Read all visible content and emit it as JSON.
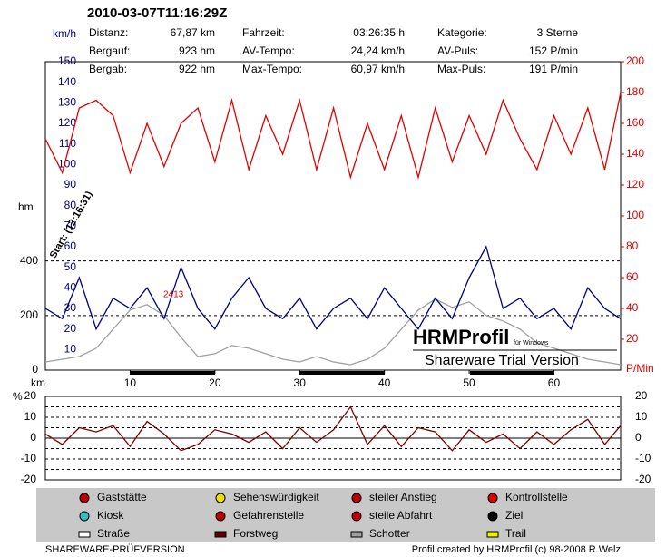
{
  "header": {
    "title": "2010-03-07T11:16:29Z",
    "stats": [
      [
        "Distanz:",
        "67,87 km",
        "Fahrzeit:",
        "03:26:35 h",
        "Kategorie:",
        "3 Sterne"
      ],
      [
        "Bergauf:",
        "923 hm",
        "AV-Tempo:",
        "24,24 km/h",
        "AV-Puls:",
        "152 P/min"
      ],
      [
        "Bergab:",
        "922 hm",
        "Max-Tempo:",
        "60,97 km/h",
        "Max-Puls:",
        "191 P/min"
      ]
    ]
  },
  "chart_data": [
    {
      "type": "line",
      "x_label": "km",
      "y_label": "hm",
      "x": [
        0,
        2,
        4,
        6,
        8,
        10,
        12,
        14,
        16,
        18,
        20,
        22,
        24,
        26,
        28,
        30,
        32,
        34,
        36,
        38,
        40,
        42,
        44,
        46,
        48,
        50,
        52,
        54,
        56,
        58,
        60,
        62,
        64,
        66,
        67.87
      ],
      "xlim": [
        0,
        67.87
      ],
      "xticks": [
        10,
        20,
        30,
        40,
        50,
        60
      ],
      "ylim": [
        0,
        1130
      ],
      "yticks": [
        0,
        200,
        400
      ],
      "grid": true,
      "y2lim": [
        0,
        200
      ],
      "y2ticks": [
        20,
        40,
        60,
        80,
        100,
        120,
        140,
        160,
        180,
        200
      ],
      "y2_label": "P/Min",
      "speed_axis": {
        "label": "km/h",
        "lim": [
          0,
          150
        ],
        "ticks": [
          10,
          20,
          30,
          40,
          50,
          60,
          70,
          80,
          90,
          100,
          110,
          120,
          130,
          140,
          150
        ],
        "color": "#000080"
      },
      "series": [
        {
          "color": "#a0a0a0",
          "axis": "y",
          "values": [
            30,
            40,
            50,
            80,
            150,
            220,
            240,
            200,
            120,
            50,
            60,
            90,
            80,
            60,
            40,
            30,
            50,
            30,
            20,
            40,
            80,
            150,
            220,
            260,
            230,
            250,
            200,
            180,
            150,
            100,
            80,
            60,
            40,
            30,
            20
          ]
        },
        {
          "color": "#000080",
          "axis": "speed",
          "values": [
            30,
            25,
            45,
            20,
            35,
            30,
            40,
            25,
            50,
            30,
            20,
            35,
            45,
            30,
            25,
            35,
            20,
            30,
            35,
            25,
            40,
            30,
            20,
            35,
            25,
            45,
            60,
            30,
            35,
            25,
            30,
            20,
            40,
            30,
            25
          ]
        },
        {
          "color": "#e00000",
          "axis": "y2",
          "values": [
            150,
            128,
            170,
            175,
            165,
            128,
            160,
            132,
            160,
            170,
            135,
            175,
            130,
            165,
            140,
            175,
            130,
            170,
            125,
            160,
            130,
            165,
            125,
            170,
            135,
            165,
            140,
            175,
            150,
            130,
            165,
            140,
            170,
            130,
            180
          ]
        }
      ],
      "annotations": [
        "Start: (12:16:31)",
        "2413"
      ],
      "watermark": [
        "HRMProfil",
        "für Windows",
        "Shareware Trial  Version"
      ]
    },
    {
      "type": "line",
      "y_label": "%",
      "x": [
        0,
        2,
        4,
        6,
        8,
        10,
        12,
        14,
        16,
        18,
        20,
        22,
        24,
        26,
        28,
        30,
        32,
        34,
        36,
        38,
        40,
        42,
        44,
        46,
        48,
        50,
        52,
        54,
        56,
        58,
        60,
        62,
        64,
        66,
        67.87
      ],
      "xlim": [
        0,
        67.87
      ],
      "ylim": [
        -20,
        20
      ],
      "yticks": [
        -20,
        -10,
        0,
        10,
        20
      ],
      "grid_lines": [
        15,
        10,
        5,
        -5,
        -10,
        -15
      ],
      "series": [
        {
          "color": "#800000",
          "values": [
            2,
            -3,
            5,
            3,
            6,
            -4,
            8,
            2,
            -6,
            -3,
            4,
            2,
            -2,
            3,
            -5,
            5,
            -2,
            4,
            15,
            -3,
            6,
            -4,
            5,
            3,
            -6,
            4,
            -2,
            2,
            -5,
            3,
            -3,
            4,
            9,
            -3,
            6
          ]
        }
      ]
    }
  ],
  "legend": [
    "Gaststätte",
    "Sehenswürdigkeit",
    "steiler Anstieg",
    "Kontrollstelle",
    "Kiosk",
    "Gefahrenstelle",
    "steile Abfahrt",
    "Ziel",
    "Straße",
    "Forstweg",
    "Schotter",
    "Trail"
  ],
  "footer": [
    "SHAREWARE-PRÜFVERSION",
    "Profil created by HRMProfil (c) 98-2008 R.Welz"
  ]
}
